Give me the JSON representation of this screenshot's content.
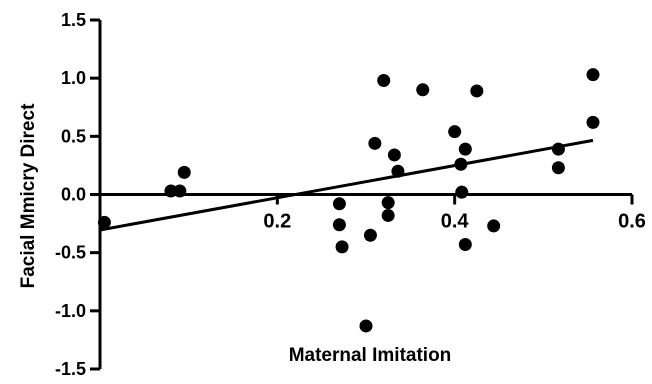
{
  "chart_data": {
    "type": "scatter",
    "title": "",
    "xlabel": "Maternal Imitation",
    "ylabel": "Facial Mmicry Direct",
    "xlim": [
      0.0,
      0.6
    ],
    "ylim": [
      -1.5,
      1.5
    ],
    "xticks": [
      {
        "value": 0.2,
        "label": "0.2"
      },
      {
        "value": 0.4,
        "label": "0.4"
      },
      {
        "value": 0.6,
        "label": "0.6"
      }
    ],
    "yticks": [
      {
        "value": 1.5,
        "label": "1.5"
      },
      {
        "value": 1.0,
        "label": "1.0"
      },
      {
        "value": 0.5,
        "label": "0.5"
      },
      {
        "value": 0.0,
        "label": "0.0"
      },
      {
        "value": -0.5,
        "label": "-0.5"
      },
      {
        "value": -1.0,
        "label": "-1.0"
      },
      {
        "value": -1.5,
        "label": "-1.5"
      }
    ],
    "points": [
      {
        "x": 0.005,
        "y": -0.24
      },
      {
        "x": 0.08,
        "y": 0.03
      },
      {
        "x": 0.09,
        "y": 0.03
      },
      {
        "x": 0.095,
        "y": 0.19
      },
      {
        "x": 0.27,
        "y": -0.08
      },
      {
        "x": 0.27,
        "y": -0.26
      },
      {
        "x": 0.273,
        "y": -0.45
      },
      {
        "x": 0.3,
        "y": -1.13
      },
      {
        "x": 0.305,
        "y": -0.35
      },
      {
        "x": 0.31,
        "y": 0.44
      },
      {
        "x": 0.32,
        "y": 0.98
      },
      {
        "x": 0.325,
        "y": -0.07
      },
      {
        "x": 0.325,
        "y": -0.18
      },
      {
        "x": 0.332,
        "y": 0.34
      },
      {
        "x": 0.336,
        "y": 0.2
      },
      {
        "x": 0.364,
        "y": 0.9
      },
      {
        "x": 0.4,
        "y": 0.54
      },
      {
        "x": 0.407,
        "y": 0.26
      },
      {
        "x": 0.408,
        "y": 0.02
      },
      {
        "x": 0.412,
        "y": 0.39
      },
      {
        "x": 0.412,
        "y": -0.43
      },
      {
        "x": 0.425,
        "y": 0.89
      },
      {
        "x": 0.444,
        "y": -0.27
      },
      {
        "x": 0.517,
        "y": 0.39
      },
      {
        "x": 0.517,
        "y": 0.23
      },
      {
        "x": 0.556,
        "y": 1.03
      },
      {
        "x": 0.556,
        "y": 0.62
      }
    ],
    "fit_line": {
      "x": [
        0.0,
        0.556
      ],
      "y": [
        -0.305,
        0.465
      ]
    },
    "grid": false,
    "legend": "none"
  }
}
